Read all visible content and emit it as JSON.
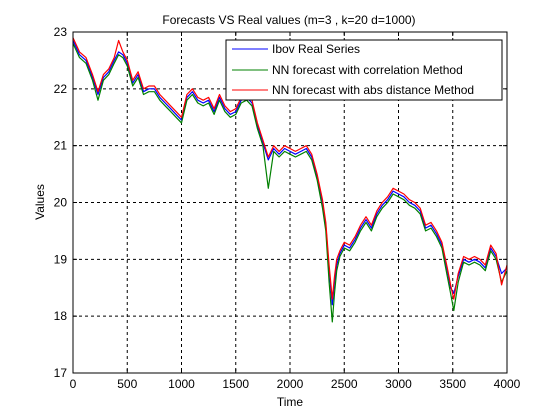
{
  "chart_data": {
    "type": "line",
    "title": "Forecasts VS Real values (m=3 , k=20 d=1000)",
    "xlabel": "Time",
    "ylabel": "Values",
    "xlim": [
      0,
      4000
    ],
    "ylim": [
      17,
      23
    ],
    "xticks": [
      0,
      500,
      1000,
      1500,
      2000,
      2500,
      3000,
      3500,
      4000
    ],
    "yticks": [
      17,
      18,
      19,
      20,
      21,
      22,
      23
    ],
    "grid": true,
    "legend_position": "top-right",
    "series_colors": [
      "#0000ff",
      "#008000",
      "#ff0000"
    ],
    "series": [
      {
        "name": "Ibov Real Series",
        "x": [
          0,
          60,
          120,
          180,
          230,
          280,
          330,
          380,
          420,
          460,
          500,
          550,
          600,
          650,
          700,
          750,
          800,
          850,
          900,
          950,
          1000,
          1050,
          1100,
          1150,
          1200,
          1250,
          1300,
          1350,
          1400,
          1450,
          1500,
          1550,
          1600,
          1650,
          1700,
          1750,
          1800,
          1850,
          1900,
          1950,
          2000,
          2050,
          2100,
          2150,
          2200,
          2250,
          2300,
          2330,
          2360,
          2390,
          2410,
          2430,
          2460,
          2500,
          2550,
          2600,
          2650,
          2700,
          2750,
          2800,
          2850,
          2900,
          2950,
          3000,
          3050,
          3100,
          3150,
          3200,
          3250,
          3300,
          3350,
          3400,
          3450,
          3480,
          3510,
          3550,
          3600,
          3650,
          3700,
          3750,
          3800,
          3850,
          3900,
          3950,
          4000
        ],
        "y": [
          22.85,
          22.6,
          22.5,
          22.2,
          21.9,
          22.2,
          22.3,
          22.5,
          22.65,
          22.6,
          22.45,
          22.1,
          22.25,
          21.95,
          22.0,
          22.0,
          21.85,
          21.75,
          21.65,
          21.55,
          21.45,
          21.85,
          21.95,
          21.8,
          21.75,
          21.8,
          21.6,
          21.85,
          21.65,
          21.55,
          21.6,
          21.8,
          21.85,
          21.75,
          21.35,
          21.05,
          20.75,
          20.95,
          20.85,
          20.95,
          20.9,
          20.85,
          20.9,
          20.95,
          20.8,
          20.45,
          20.0,
          19.6,
          18.8,
          18.2,
          18.6,
          18.9,
          19.1,
          19.25,
          19.2,
          19.35,
          19.55,
          19.7,
          19.55,
          19.8,
          19.95,
          20.05,
          20.2,
          20.15,
          20.1,
          20.0,
          19.95,
          19.85,
          19.55,
          19.6,
          19.45,
          19.25,
          18.8,
          18.5,
          18.4,
          18.7,
          19.0,
          18.95,
          19.0,
          18.95,
          18.85,
          19.2,
          19.05,
          18.75,
          18.85
        ]
      },
      {
        "name": "NN forecast with correlation Method",
        "x": [
          0,
          60,
          120,
          180,
          230,
          280,
          330,
          380,
          420,
          460,
          500,
          550,
          600,
          650,
          700,
          750,
          800,
          850,
          900,
          950,
          1000,
          1050,
          1100,
          1150,
          1200,
          1250,
          1300,
          1350,
          1400,
          1450,
          1500,
          1550,
          1600,
          1650,
          1700,
          1750,
          1800,
          1850,
          1900,
          1950,
          2000,
          2050,
          2100,
          2150,
          2200,
          2250,
          2300,
          2330,
          2360,
          2390,
          2410,
          2430,
          2460,
          2500,
          2550,
          2600,
          2650,
          2700,
          2750,
          2800,
          2850,
          2900,
          2950,
          3000,
          3050,
          3100,
          3150,
          3200,
          3250,
          3300,
          3350,
          3400,
          3450,
          3480,
          3510,
          3550,
          3600,
          3650,
          3700,
          3750,
          3800,
          3850,
          3900,
          3950,
          4000
        ],
        "y": [
          22.8,
          22.55,
          22.45,
          22.15,
          21.8,
          22.15,
          22.25,
          22.45,
          22.6,
          22.55,
          22.4,
          22.05,
          22.2,
          21.9,
          21.95,
          21.95,
          21.8,
          21.7,
          21.6,
          21.5,
          21.4,
          21.8,
          21.9,
          21.75,
          21.7,
          21.75,
          21.55,
          21.8,
          21.6,
          21.5,
          21.55,
          21.75,
          21.8,
          21.7,
          21.3,
          21.0,
          20.25,
          20.9,
          20.8,
          20.9,
          20.85,
          20.8,
          20.85,
          20.9,
          20.75,
          20.4,
          19.9,
          19.5,
          18.6,
          17.9,
          18.4,
          18.8,
          19.05,
          19.2,
          19.15,
          19.3,
          19.5,
          19.65,
          19.5,
          19.75,
          19.9,
          20.0,
          20.15,
          20.1,
          20.05,
          19.95,
          19.9,
          19.8,
          19.5,
          19.55,
          19.4,
          19.2,
          18.7,
          18.4,
          18.1,
          18.6,
          18.95,
          18.9,
          18.95,
          18.9,
          18.8,
          19.15,
          19.0,
          18.6,
          18.8
        ]
      },
      {
        "name": "NN forecast with abs distance Method",
        "x": [
          0,
          60,
          120,
          180,
          230,
          280,
          330,
          380,
          420,
          460,
          500,
          550,
          600,
          650,
          700,
          750,
          800,
          850,
          900,
          950,
          1000,
          1050,
          1100,
          1150,
          1200,
          1250,
          1300,
          1350,
          1400,
          1450,
          1500,
          1550,
          1600,
          1650,
          1700,
          1750,
          1800,
          1850,
          1900,
          1950,
          2000,
          2050,
          2100,
          2150,
          2200,
          2250,
          2300,
          2330,
          2360,
          2390,
          2410,
          2430,
          2460,
          2500,
          2550,
          2600,
          2650,
          2700,
          2750,
          2800,
          2850,
          2900,
          2950,
          3000,
          3050,
          3100,
          3150,
          3200,
          3250,
          3300,
          3350,
          3400,
          3450,
          3480,
          3510,
          3550,
          3600,
          3650,
          3700,
          3750,
          3800,
          3850,
          3900,
          3950,
          4000
        ],
        "y": [
          22.9,
          22.65,
          22.55,
          22.25,
          21.95,
          22.25,
          22.35,
          22.55,
          22.85,
          22.65,
          22.5,
          22.15,
          22.3,
          22.0,
          22.05,
          22.05,
          21.9,
          21.8,
          21.7,
          21.6,
          21.5,
          21.9,
          22.0,
          21.85,
          21.8,
          21.85,
          21.65,
          21.9,
          21.7,
          21.6,
          21.65,
          21.85,
          21.9,
          21.8,
          21.4,
          21.1,
          20.8,
          21.0,
          20.9,
          21.0,
          20.95,
          20.9,
          20.95,
          21.0,
          20.85,
          20.5,
          20.05,
          19.65,
          18.9,
          18.3,
          18.7,
          19.0,
          19.15,
          19.3,
          19.25,
          19.4,
          19.6,
          19.75,
          19.6,
          19.85,
          20.0,
          20.1,
          20.25,
          20.2,
          20.15,
          20.05,
          20.0,
          19.9,
          19.6,
          19.65,
          19.5,
          19.3,
          18.85,
          18.55,
          18.3,
          18.75,
          19.05,
          19.0,
          19.05,
          19.0,
          18.9,
          19.25,
          19.1,
          18.55,
          18.9
        ]
      }
    ]
  }
}
